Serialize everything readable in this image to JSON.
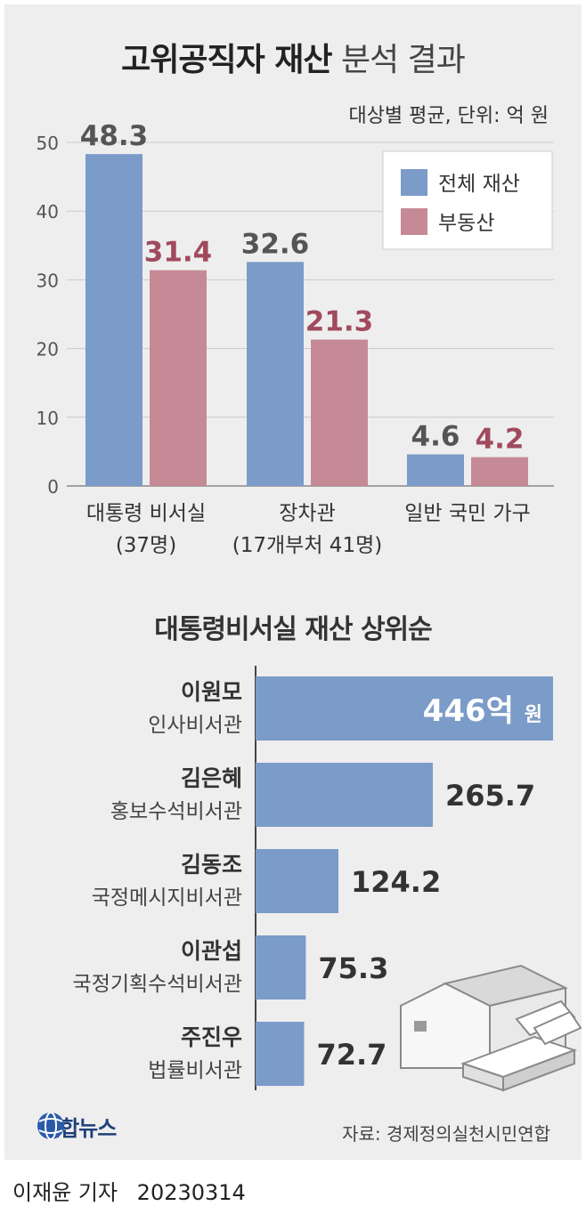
{
  "title_bold": "고위공직자 재산",
  "title_light": "분석 결과",
  "units": "대상별 평균, 단위: 억 원",
  "colors": {
    "total": "#7b9bc8",
    "realestate": "#c68a96",
    "realestate_label": "#a04a5e",
    "panel": "#eeeeee"
  },
  "chart_data": [
    {
      "type": "bar",
      "categories": [
        "대통령 비서실\n(37명)",
        "장차관\n(17개부처 41명)",
        "일반 국민 가구"
      ],
      "category_lines": [
        [
          "대통령 비서실",
          "(37명)"
        ],
        [
          "장차관",
          "(17개부처 41명)"
        ],
        [
          "일반 국민 가구"
        ]
      ],
      "series": [
        {
          "name": "전체 재산",
          "values": [
            48.3,
            32.6,
            4.6
          ]
        },
        {
          "name": "부동산",
          "values": [
            31.4,
            21.3,
            4.2
          ]
        }
      ],
      "value_labels": [
        [
          "48.3",
          "32.6",
          "4.6"
        ],
        [
          "31.4",
          "21.3",
          "4.2"
        ]
      ],
      "ylim": [
        0,
        50
      ],
      "yticks": [
        "0",
        "10",
        "20",
        "30",
        "40",
        "50"
      ],
      "legend": "top-right",
      "grid": true
    },
    {
      "type": "bar",
      "orientation": "horizontal",
      "title": "대통령비서실 재산 상위순",
      "rows": [
        {
          "name": "이원모",
          "position": "인사비서관",
          "value": 446,
          "label": "446억",
          "unit": "원"
        },
        {
          "name": "김은혜",
          "position": "홍보수석비서관",
          "value": 265.7,
          "label": "265.7"
        },
        {
          "name": "김동조",
          "position": "국정메시지비서관",
          "value": 124.2,
          "label": "124.2"
        },
        {
          "name": "이관섭",
          "position": "국정기획수석비서관",
          "value": 75.3,
          "label": "75.3"
        },
        {
          "name": "주진우",
          "position": "법률비서관",
          "value": 72.7,
          "label": "72.7"
        }
      ]
    }
  ],
  "logo_text": "연합뉴스",
  "source": "자료: 경제정의실천시민연합",
  "byline": {
    "reporter": "이재윤 기자",
    "date": "20230314"
  }
}
